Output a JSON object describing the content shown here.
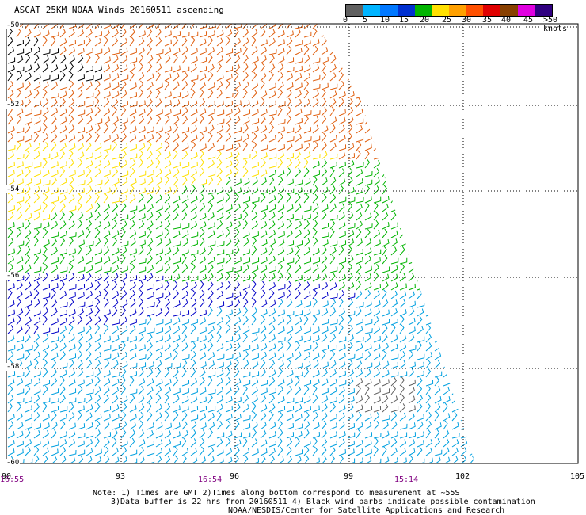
{
  "title": "ASCAT 25KM NOAA Winds 20160511 ascending",
  "legend": {
    "unit": "knots",
    "labels": [
      "0",
      "5",
      "10",
      "15",
      "20",
      "25",
      "30",
      "35",
      "40",
      "45",
      ">50 knots"
    ],
    "colors": [
      "#606060",
      "#00b4ff",
      "#0078ff",
      "#0030d0",
      "#00b400",
      "#ffe000",
      "#ffa000",
      "#ff5000",
      "#e00000",
      "#884000",
      "#e000e0",
      "#300080"
    ]
  },
  "map": {
    "lat_labels": [
      "-50",
      "-52",
      "-54",
      "-56",
      "-58",
      "-60"
    ],
    "lon_labels": [
      "90",
      "93",
      "96",
      "99",
      "102",
      "105"
    ],
    "time_labels": [
      "16:55",
      "16:54",
      "15:14"
    ],
    "colors": {
      "orange": "#e06010",
      "yellow": "#ffe000",
      "green": "#00b400",
      "blue": "#0000c8",
      "cyan": "#00a0e0",
      "gray": "#606060",
      "black": "#000000"
    }
  },
  "notes": {
    "line1": "Note: 1) Times are GMT 2)Times along bottom correspond to measurement at ~55S",
    "line2": "3)Data buffer is 22 hrs from 20160511 4) Black wind barbs indicate possible contamination",
    "line3": "NOAA/NESDIS/Center for Satellite Applications and Research"
  }
}
